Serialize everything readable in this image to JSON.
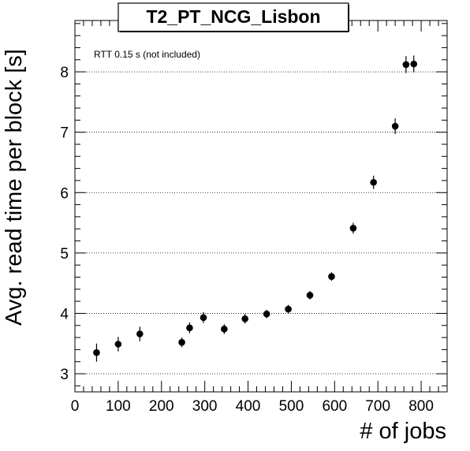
{
  "chart_data": {
    "type": "scatter",
    "title": "T2_PT_NCG_Lisbon",
    "xlabel": "# of jobs",
    "ylabel": "Avg. read time per block [s]",
    "annotation": "RTT 0.15 s (not included)",
    "xlim": [
      0,
      860
    ],
    "ylim": [
      2.7,
      8.85
    ],
    "xticks": [
      0,
      100,
      200,
      300,
      400,
      500,
      600,
      700,
      800
    ],
    "yticks": [
      3,
      4,
      5,
      6,
      7,
      8
    ],
    "grid": "horizontal dotted",
    "marker_color": "#000000",
    "points": [
      {
        "x": 50,
        "y": 3.35,
        "err": 0.15
      },
      {
        "x": 100,
        "y": 3.49,
        "err": 0.12
      },
      {
        "x": 150,
        "y": 3.66,
        "err": 0.12
      },
      {
        "x": 247,
        "y": 3.52,
        "err": 0.08
      },
      {
        "x": 265,
        "y": 3.76,
        "err": 0.09
      },
      {
        "x": 297,
        "y": 3.93,
        "err": 0.09
      },
      {
        "x": 345,
        "y": 3.74,
        "err": 0.08
      },
      {
        "x": 393,
        "y": 3.91,
        "err": 0.08
      },
      {
        "x": 443,
        "y": 3.99,
        "err": 0.07
      },
      {
        "x": 493,
        "y": 4.07,
        "err": 0.07
      },
      {
        "x": 543,
        "y": 4.3,
        "err": 0.07
      },
      {
        "x": 593,
        "y": 4.61,
        "err": 0.07
      },
      {
        "x": 643,
        "y": 5.41,
        "err": 0.09
      },
      {
        "x": 690,
        "y": 6.17,
        "err": 0.11
      },
      {
        "x": 740,
        "y": 7.1,
        "err": 0.13
      },
      {
        "x": 765,
        "y": 8.12,
        "err": 0.14
      },
      {
        "x": 783,
        "y": 8.13,
        "err": 0.14
      }
    ]
  }
}
